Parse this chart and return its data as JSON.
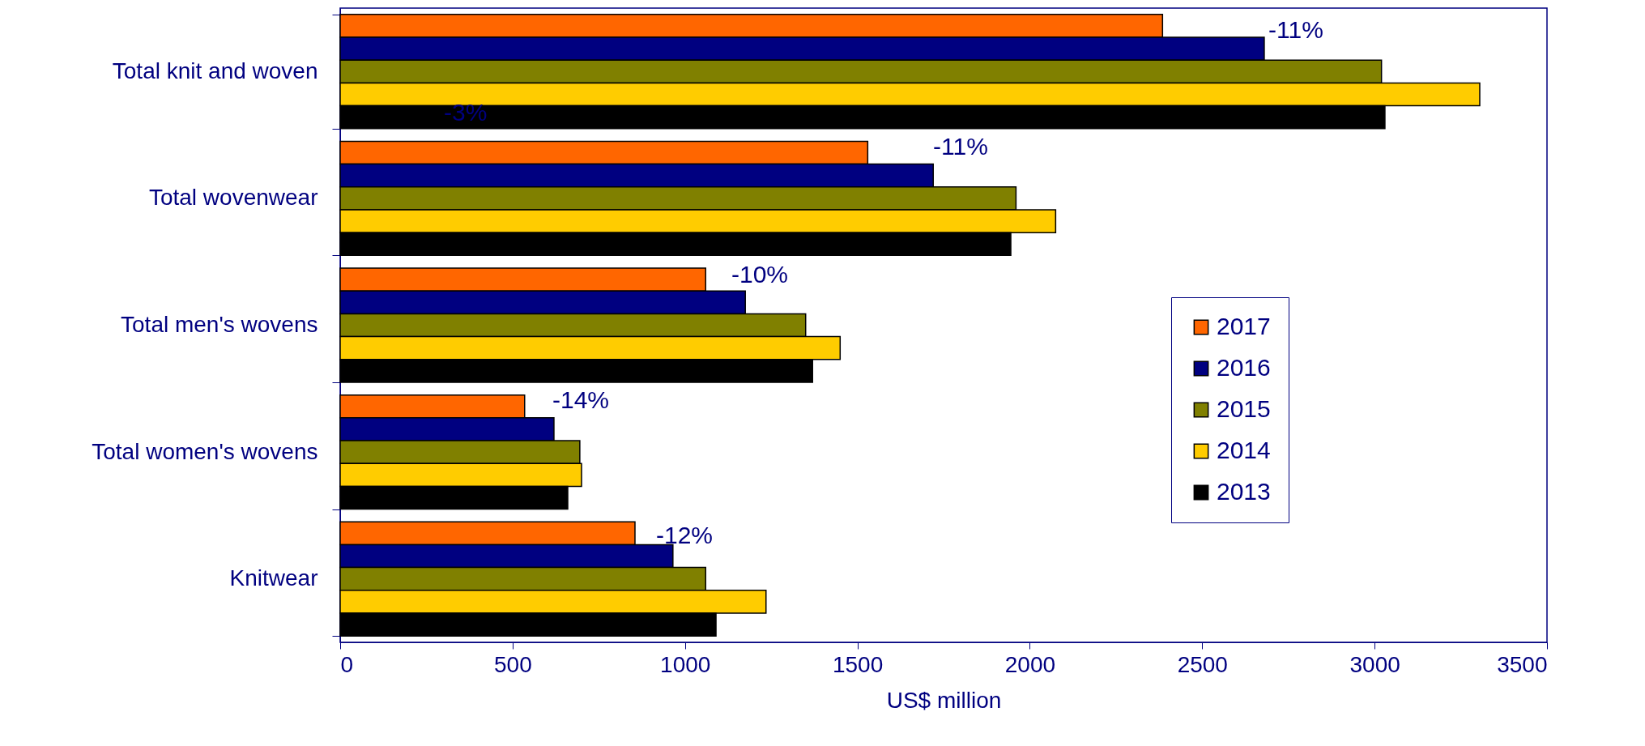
{
  "chart_data": {
    "type": "bar",
    "orientation": "horizontal",
    "xlabel": "US$ million",
    "categories": [
      "Total knit and woven",
      "Total wovenwear",
      "Total men's wovens",
      "Total women's wovens",
      "Knitwear"
    ],
    "series": [
      {
        "name": "2017",
        "color": "#ff6600",
        "values": [
          2385,
          1530,
          1060,
          535,
          855
        ]
      },
      {
        "name": "2016",
        "color": "#000080",
        "values": [
          2680,
          1720,
          1175,
          620,
          965
        ]
      },
      {
        "name": "2015",
        "color": "#808000",
        "values": [
          3020,
          1960,
          1350,
          695,
          1060
        ]
      },
      {
        "name": "2014",
        "color": "#ffcc00",
        "values": [
          3305,
          2075,
          1450,
          700,
          1235
        ]
      },
      {
        "name": "2013",
        "color": "#000000",
        "values": [
          3030,
          1945,
          1370,
          660,
          1090
        ]
      }
    ],
    "xlim": [
      0,
      3500
    ],
    "xticks": [
      0,
      500,
      1000,
      1500,
      2000,
      2500,
      3000,
      3500
    ],
    "annotations": [
      "-11%",
      "-3%",
      "-11%",
      "-10%",
      "-14%",
      "-12%"
    ],
    "grid": false,
    "legend": "right"
  }
}
